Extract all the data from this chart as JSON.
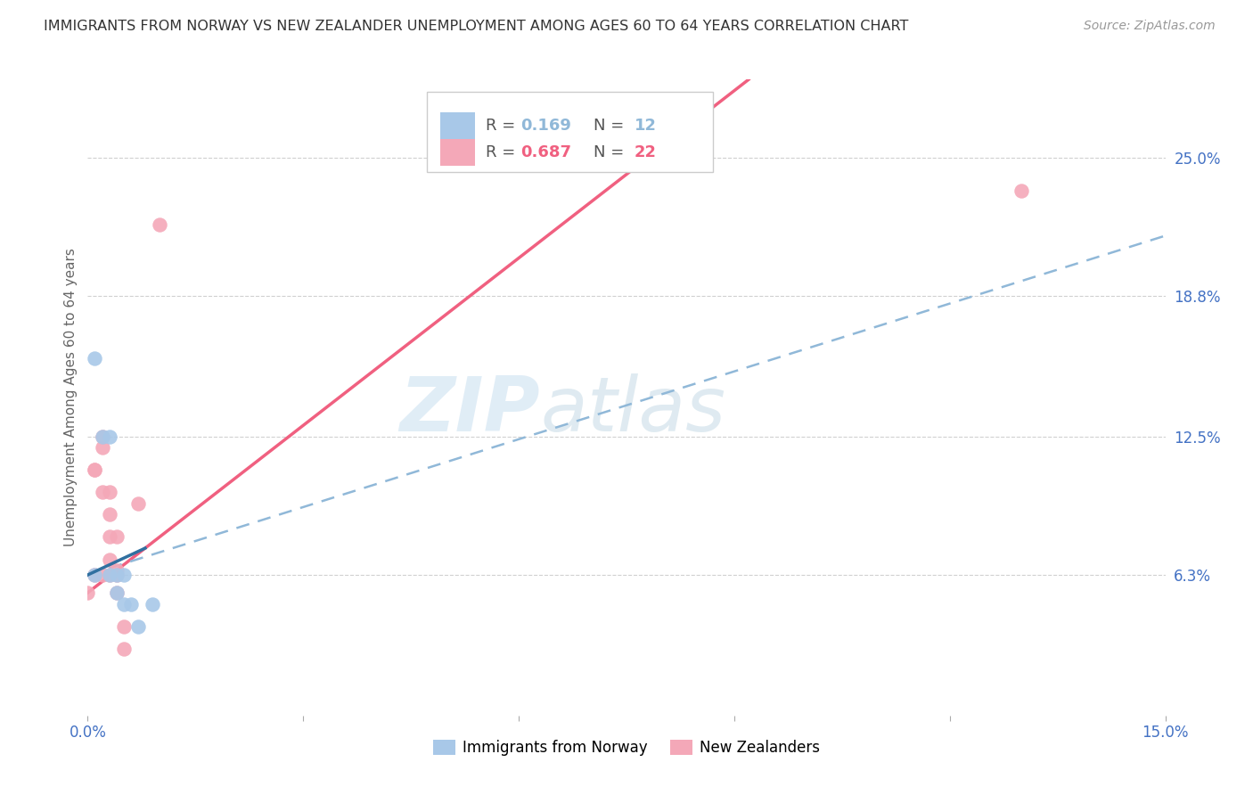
{
  "title": "IMMIGRANTS FROM NORWAY VS NEW ZEALANDER UNEMPLOYMENT AMONG AGES 60 TO 64 YEARS CORRELATION CHART",
  "source": "Source: ZipAtlas.com",
  "ylabel_left": "Unemployment Among Ages 60 to 64 years",
  "xmin": 0.0,
  "xmax": 0.15,
  "ymin": 0.0,
  "ymax": 0.285,
  "right_yticks": [
    0.063,
    0.125,
    0.188,
    0.25
  ],
  "right_yticklabels": [
    "6.3%",
    "12.5%",
    "18.8%",
    "25.0%"
  ],
  "xticks": [
    0.0,
    0.03,
    0.06,
    0.09,
    0.12,
    0.15
  ],
  "xticklabels": [
    "0.0%",
    "",
    "",
    "",
    "",
    "15.0%"
  ],
  "blue_R": 0.169,
  "blue_N": 12,
  "pink_R": 0.687,
  "pink_N": 22,
  "blue_scatter_color": "#a8c8e8",
  "pink_scatter_color": "#f4a8b8",
  "blue_line_color": "#90b8d8",
  "pink_line_color": "#f06080",
  "legend_label_blue": "Immigrants from Norway",
  "legend_label_pink": "New Zealanders",
  "watermark": "ZIPatlas",
  "blue_points_x": [
    0.001,
    0.001,
    0.002,
    0.003,
    0.003,
    0.004,
    0.004,
    0.005,
    0.005,
    0.006,
    0.007,
    0.009
  ],
  "blue_points_y": [
    0.063,
    0.16,
    0.125,
    0.125,
    0.063,
    0.055,
    0.063,
    0.05,
    0.063,
    0.05,
    0.04,
    0.05
  ],
  "pink_points_x": [
    0.0,
    0.001,
    0.001,
    0.001,
    0.002,
    0.002,
    0.002,
    0.002,
    0.003,
    0.003,
    0.003,
    0.003,
    0.003,
    0.004,
    0.004,
    0.004,
    0.004,
    0.005,
    0.005,
    0.007,
    0.01,
    0.13
  ],
  "pink_points_y": [
    0.055,
    0.063,
    0.11,
    0.11,
    0.063,
    0.1,
    0.12,
    0.125,
    0.07,
    0.08,
    0.09,
    0.1,
    0.063,
    0.055,
    0.063,
    0.08,
    0.065,
    0.03,
    0.04,
    0.095,
    0.22,
    0.235
  ],
  "blue_solid_trend_x": [
    0.0,
    0.008
  ],
  "blue_solid_trend_y": [
    0.063,
    0.075
  ],
  "blue_dashed_trend_x": [
    0.0,
    0.15
  ],
  "blue_dashed_trend_y": [
    0.063,
    0.215
  ],
  "pink_trend_x": [
    0.0,
    0.092
  ],
  "pink_trend_y": [
    0.055,
    0.285
  ]
}
